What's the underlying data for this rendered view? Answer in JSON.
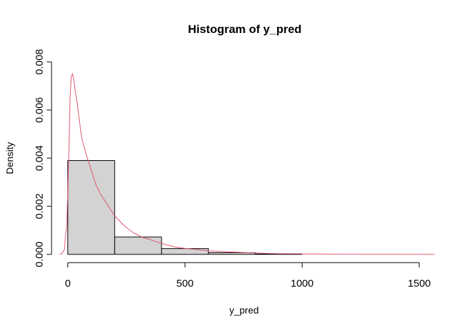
{
  "chart_data": {
    "type": "histogram",
    "title": "Histogram of y_pred",
    "xlabel": "y_pred",
    "ylabel": "Density",
    "xlim": [
      -40,
      1565
    ],
    "ylim": [
      0,
      0.008
    ],
    "x_ticks": [
      0,
      500,
      1000,
      1500
    ],
    "x_tick_labels": [
      "0",
      "500",
      "1000",
      "1500"
    ],
    "y_ticks": [
      0,
      0.002,
      0.004,
      0.006,
      0.008
    ],
    "y_tick_labels": [
      "0.000",
      "0.002",
      "0.004",
      "0.006",
      "0.008"
    ],
    "grid": false,
    "bins": [
      {
        "x0": 0,
        "x1": 200,
        "density": 0.0039
      },
      {
        "x0": 200,
        "x1": 400,
        "density": 0.00072
      },
      {
        "x0": 400,
        "x1": 600,
        "density": 0.00024
      },
      {
        "x0": 600,
        "x1": 800,
        "density": 7e-05
      },
      {
        "x0": 800,
        "x1": 1000,
        "density": 2e-05
      }
    ],
    "bar_fill": "#d3d3d3",
    "bar_stroke": "#000000",
    "density_curve": {
      "color": "#df536b",
      "points": [
        [
          -35,
          0.0
        ],
        [
          -25,
          3e-05
        ],
        [
          -15,
          0.0002
        ],
        [
          -5,
          0.0012
        ],
        [
          0,
          0.0025
        ],
        [
          5,
          0.0045
        ],
        [
          10,
          0.0066
        ],
        [
          15,
          0.0074
        ],
        [
          20,
          0.0075
        ],
        [
          25,
          0.0073
        ],
        [
          30,
          0.0069
        ],
        [
          40,
          0.0063
        ],
        [
          50,
          0.0055
        ],
        [
          60,
          0.0048
        ],
        [
          80,
          0.0041
        ],
        [
          100,
          0.0035
        ],
        [
          120,
          0.0029
        ],
        [
          140,
          0.0025
        ],
        [
          160,
          0.0022
        ],
        [
          180,
          0.0019
        ],
        [
          200,
          0.0016
        ],
        [
          220,
          0.0014
        ],
        [
          240,
          0.0012
        ],
        [
          260,
          0.00104
        ],
        [
          280,
          0.0009
        ],
        [
          300,
          0.0008
        ],
        [
          320,
          0.0007
        ],
        [
          350,
          0.00062
        ],
        [
          380,
          0.00052
        ],
        [
          420,
          0.0004
        ],
        [
          460,
          0.0003
        ],
        [
          500,
          0.00025
        ],
        [
          550,
          0.0002
        ],
        [
          600,
          0.00015
        ],
        [
          650,
          0.00012
        ],
        [
          700,
          0.0001
        ],
        [
          750,
          8e-05
        ],
        [
          800,
          6e-05
        ],
        [
          850,
          4e-05
        ],
        [
          900,
          3e-05
        ],
        [
          1000,
          2e-05
        ],
        [
          1100,
          1e-05
        ],
        [
          1250,
          5e-06
        ],
        [
          1400,
          2e-06
        ],
        [
          1565,
          0.0
        ]
      ]
    }
  }
}
